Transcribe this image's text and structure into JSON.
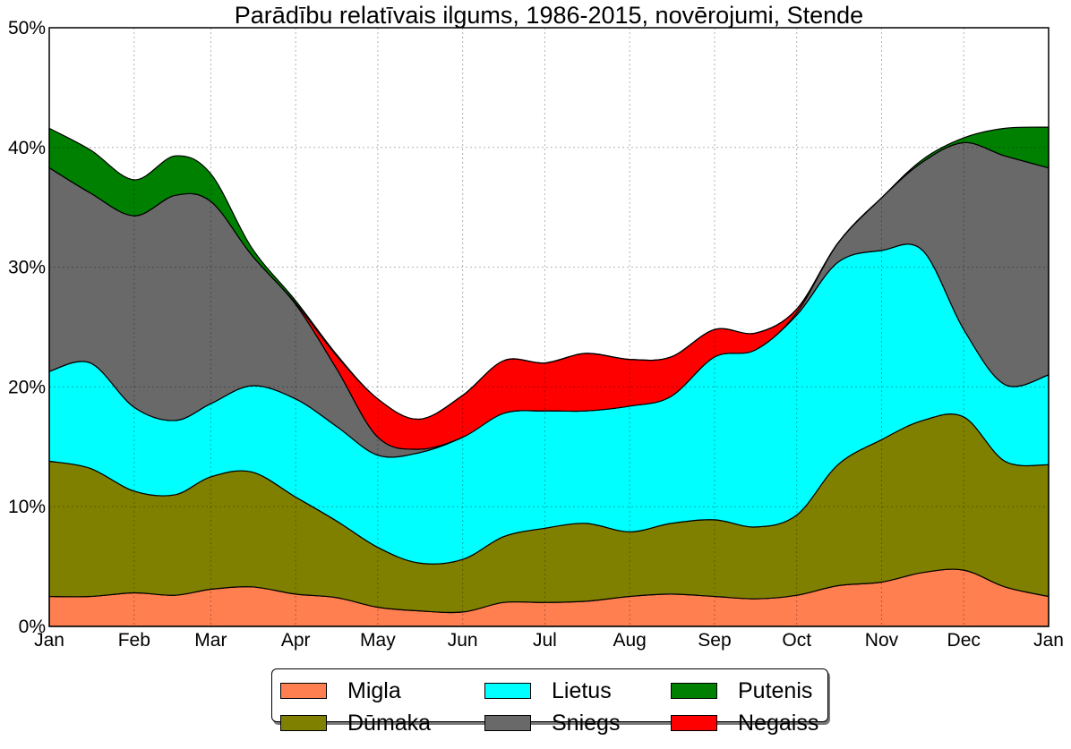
{
  "chart_data": {
    "type": "area",
    "stacked": true,
    "title": "Parādību relatīvais ilgums, 1986-2015, novērojumi, Stende",
    "xlabel": "",
    "ylabel": "",
    "x_unit": "day of year",
    "x": [
      0,
      15,
      31,
      46,
      59,
      74,
      90,
      105,
      120,
      135,
      151,
      166,
      181,
      196,
      212,
      227,
      243,
      258,
      273,
      288,
      304,
      319,
      334,
      349,
      365
    ],
    "xlim": [
      0,
      365
    ],
    "x_ticks": [
      {
        "value": 0,
        "label": "Jan"
      },
      {
        "value": 31,
        "label": "Feb"
      },
      {
        "value": 59,
        "label": "Mar"
      },
      {
        "value": 90,
        "label": "Apr"
      },
      {
        "value": 120,
        "label": "May"
      },
      {
        "value": 151,
        "label": "Jun"
      },
      {
        "value": 181,
        "label": "Jul"
      },
      {
        "value": 212,
        "label": "Aug"
      },
      {
        "value": 243,
        "label": "Sep"
      },
      {
        "value": 273,
        "label": "Oct"
      },
      {
        "value": 304,
        "label": "Nov"
      },
      {
        "value": 334,
        "label": "Dec"
      },
      {
        "value": 365,
        "label": "Jan"
      }
    ],
    "ylim": [
      0,
      50
    ],
    "y_ticks": [
      {
        "value": 0,
        "label": "0%"
      },
      {
        "value": 10,
        "label": "10%"
      },
      {
        "value": 20,
        "label": "20%"
      },
      {
        "value": 30,
        "label": "30%"
      },
      {
        "value": 40,
        "label": "40%"
      },
      {
        "value": 50,
        "label": "50%"
      }
    ],
    "grid": true,
    "legend_position": "bottom-center",
    "series": [
      {
        "name": "Migla",
        "color": "#ff7f50",
        "values": [
          2.5,
          2.5,
          2.8,
          2.6,
          3.1,
          3.3,
          2.7,
          2.4,
          1.6,
          1.3,
          1.2,
          2.0,
          2.0,
          2.1,
          2.5,
          2.7,
          2.5,
          2.3,
          2.6,
          3.4,
          3.7,
          4.5,
          4.7,
          3.3,
          2.5
        ]
      },
      {
        "name": "Dūmaka",
        "color": "#808000",
        "values": [
          11.3,
          10.7,
          8.5,
          8.4,
          9.4,
          9.6,
          8.1,
          6.4,
          5.0,
          4.0,
          4.4,
          5.5,
          6.2,
          6.5,
          5.4,
          5.9,
          6.4,
          6.0,
          6.7,
          10.1,
          11.9,
          12.7,
          12.8,
          10.5,
          11.0
        ]
      },
      {
        "name": "Lietus",
        "color": "#00ffff",
        "values": [
          7.5,
          8.8,
          7.0,
          6.2,
          6.1,
          7.2,
          8.2,
          7.9,
          7.7,
          9.2,
          10.2,
          10.3,
          9.8,
          9.4,
          10.5,
          10.6,
          13.6,
          14.8,
          16.7,
          16.9,
          15.8,
          14.2,
          7.3,
          6.4,
          7.5
        ]
      },
      {
        "name": "Sniegs",
        "color": "#696969",
        "values": [
          17.0,
          14.2,
          16.0,
          18.8,
          16.9,
          10.9,
          7.9,
          4.8,
          1.5,
          0.3,
          0.0,
          0.0,
          0.0,
          0.0,
          0.0,
          0.0,
          0.0,
          0.0,
          0.2,
          1.6,
          4.4,
          7.4,
          15.6,
          19.1,
          17.3
        ]
      },
      {
        "name": "Negaiss",
        "color": "#ff0000",
        "values": [
          0.0,
          0.0,
          0.0,
          0.0,
          0.0,
          0.0,
          0.1,
          1.1,
          3.2,
          2.5,
          3.5,
          4.4,
          4.0,
          4.8,
          3.9,
          3.3,
          2.3,
          1.4,
          0.3,
          0.0,
          0.0,
          0.0,
          0.0,
          0.0,
          0.0
        ]
      },
      {
        "name": "Putenis",
        "color": "#008000",
        "values": [
          3.3,
          3.6,
          3.0,
          3.3,
          2.3,
          0.6,
          0.2,
          0.1,
          0.0,
          0.0,
          0.0,
          0.0,
          0.0,
          0.0,
          0.0,
          0.0,
          0.0,
          0.0,
          0.0,
          0.0,
          0.0,
          0.2,
          0.4,
          2.3,
          3.4
        ]
      }
    ]
  },
  "legend": {
    "items": [
      {
        "label": "Migla",
        "color": "#ff7f50"
      },
      {
        "label": "Lietus",
        "color": "#00ffff"
      },
      {
        "label": "Putenis",
        "color": "#008000"
      },
      {
        "label": "Dūmaka",
        "color": "#808000"
      },
      {
        "label": "Sniegs",
        "color": "#696969"
      },
      {
        "label": "Negaiss",
        "color": "#ff0000"
      }
    ]
  }
}
